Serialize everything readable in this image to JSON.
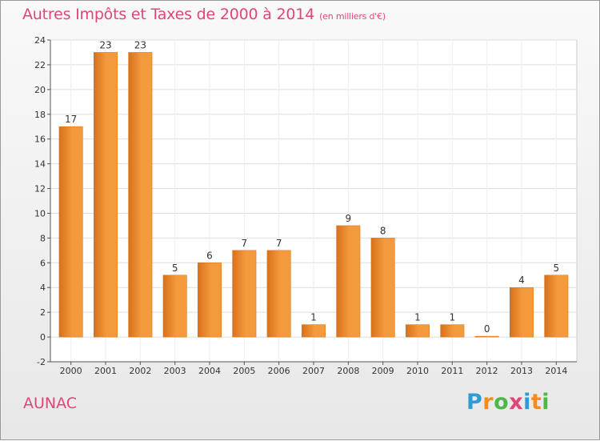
{
  "header": {
    "title": "Autres Impôts et Taxes de 2000 à 2014",
    "subtitle": "(en milliers d'€)"
  },
  "footer": {
    "location": "AUNAC",
    "logo": [
      "P",
      "r",
      "o",
      "x",
      "i",
      "t",
      "i"
    ],
    "logo_colors": [
      "#2e9bd6",
      "#f28c1e",
      "#4cb848",
      "#e0457a",
      "#2e9bd6",
      "#f28c1e",
      "#4cb848"
    ]
  },
  "chart_data": {
    "type": "bar",
    "title": "Autres Impôts et Taxes de 2000 à 2014",
    "subtitle": "(en milliers d'€)",
    "categories": [
      "2000",
      "2001",
      "2002",
      "2003",
      "2004",
      "2005",
      "2006",
      "2007",
      "2008",
      "2009",
      "2010",
      "2011",
      "2012",
      "2013",
      "2014"
    ],
    "values": [
      17,
      23,
      23,
      5,
      6,
      7,
      7,
      1,
      9,
      8,
      1,
      1,
      0,
      4,
      5
    ],
    "data_labels": [
      "17",
      "23",
      "23",
      "5",
      "6",
      "7",
      "7",
      "1",
      "9",
      "8",
      "1",
      "1",
      "0",
      "4",
      "5"
    ],
    "y_ticks": [
      -2,
      0,
      2,
      4,
      6,
      8,
      10,
      12,
      14,
      16,
      18,
      20,
      22,
      24
    ],
    "y_tick_labels": [
      "-2",
      "0",
      "2",
      "4",
      "6",
      "8",
      "10",
      "12",
      "14",
      "16",
      "18",
      "20",
      "22",
      "24"
    ],
    "ylim": [
      -2,
      24
    ],
    "xlabel": "",
    "ylabel": "",
    "grid": true,
    "bar_color": "#f39a3c",
    "bar_color_dark": "#d8711c"
  }
}
